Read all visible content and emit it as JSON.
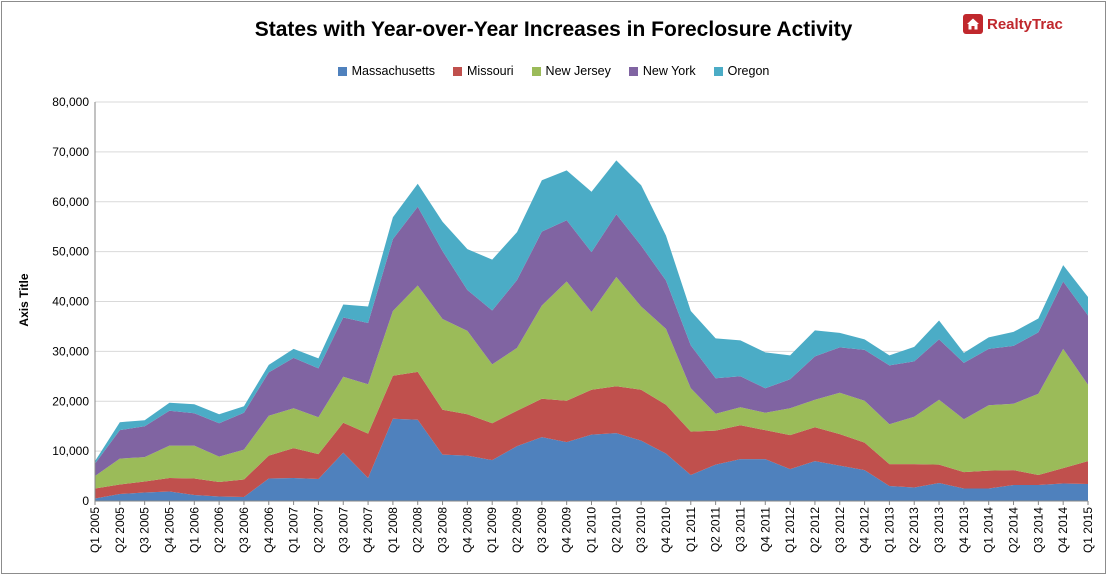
{
  "title": "States with Year-over-Year Increases in Foreclosure Activity",
  "brand": "RealtyTrac",
  "chart_data": {
    "type": "area",
    "stacked": true,
    "title": "States with Year-over-Year Increases in Foreclosure Activity",
    "ylabel": "Axis Title",
    "xlabel": "",
    "ylim": [
      0,
      80000
    ],
    "yticks": [
      "0",
      "10,000",
      "20,000",
      "30,000",
      "40,000",
      "50,000",
      "60,000",
      "70,000",
      "80,000"
    ],
    "grid": true,
    "legend_position": "top",
    "categories": [
      "Q1 2005",
      "Q2 2005",
      "Q3 2005",
      "Q4 2005",
      "Q1 2006",
      "Q2 2006",
      "Q3 2006",
      "Q4 2006",
      "Q1 2007",
      "Q2 2007",
      "Q3 2007",
      "Q4 2007",
      "Q1 2008",
      "Q2 2008",
      "Q3 2008",
      "Q4 2008",
      "Q1 2009",
      "Q2 2009",
      "Q3 2009",
      "Q4 2009",
      "Q1 2010",
      "Q2 2010",
      "Q3 2010",
      "Q4 2010",
      "Q1 2011",
      "Q2 2011",
      "Q3 2011",
      "Q4 2011",
      "Q1 2012",
      "Q2 2012",
      "Q3 2012",
      "Q4 2012",
      "Q1 2013",
      "Q2 2013",
      "Q3 2013",
      "Q4 2013",
      "Q1 2014",
      "Q2 2014",
      "Q3 2014",
      "Q4 2014",
      "Q1 2015"
    ],
    "series": [
      {
        "name": "Massachusetts",
        "color": "#4f81bd",
        "values": [
          500,
          1400,
          1700,
          1900,
          1200,
          900,
          800,
          4500,
          4600,
          4400,
          9700,
          4600,
          16500,
          16300,
          9300,
          9100,
          8200,
          11000,
          12800,
          11800,
          13300,
          13600,
          12100,
          9500,
          5200,
          7300,
          8400,
          8400,
          6400,
          8000,
          7100,
          6200,
          3000,
          2700,
          3600,
          2500,
          2500,
          3200,
          3200,
          3500,
          3400
        ]
      },
      {
        "name": "Missouri",
        "color": "#c0504d",
        "values": [
          2000,
          1900,
          2200,
          2700,
          3300,
          2900,
          3500,
          4600,
          6000,
          5000,
          6000,
          8900,
          8600,
          9600,
          9000,
          8300,
          7400,
          7100,
          7700,
          8300,
          9000,
          9400,
          10200,
          9800,
          8700,
          6800,
          6800,
          5800,
          6800,
          6800,
          6300,
          5500,
          4400,
          4700,
          3700,
          3300,
          3600,
          3000,
          2000,
          3100,
          4600
        ]
      },
      {
        "name": "New Jersey",
        "color": "#9bbb59",
        "values": [
          2500,
          5200,
          4900,
          6500,
          6600,
          5100,
          6000,
          8000,
          8000,
          7400,
          9200,
          9900,
          13000,
          17300,
          18200,
          16700,
          11800,
          12600,
          18700,
          23900,
          15600,
          21900,
          16700,
          15200,
          8700,
          3400,
          3600,
          3500,
          5400,
          5500,
          8300,
          8400,
          8000,
          9500,
          13000,
          10600,
          13100,
          13300,
          16300,
          23900,
          15300
        ]
      },
      {
        "name": "New York",
        "color": "#8064a2",
        "values": [
          2500,
          5700,
          6200,
          7000,
          6500,
          6700,
          7400,
          8700,
          10100,
          9800,
          11900,
          12300,
          14400,
          15800,
          13600,
          8200,
          10800,
          13600,
          14800,
          12300,
          12000,
          12600,
          12200,
          9700,
          8600,
          7100,
          6200,
          4900,
          5800,
          8700,
          9100,
          10200,
          11800,
          11100,
          12100,
          11300,
          11300,
          11600,
          12300,
          13500,
          13900
        ]
      },
      {
        "name": "Oregon",
        "color": "#4bacc6",
        "values": [
          500,
          1600,
          1200,
          1600,
          1800,
          1800,
          1300,
          1500,
          1800,
          2000,
          2600,
          3300,
          4400,
          4600,
          5900,
          8200,
          10200,
          9600,
          10300,
          10000,
          12100,
          10800,
          12100,
          9000,
          6900,
          8000,
          7200,
          7200,
          4800,
          5200,
          2900,
          2100,
          2000,
          2900,
          3800,
          2000,
          2300,
          2800,
          2800,
          3300,
          3700
        ]
      }
    ]
  }
}
